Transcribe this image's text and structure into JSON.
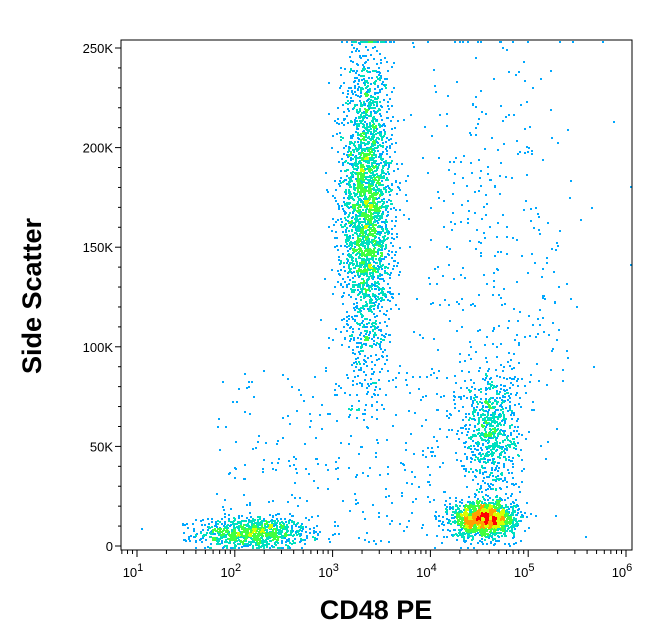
{
  "chart_data": {
    "type": "scatter",
    "style": "flow-cytometry density dot plot (pseudocolor)",
    "xlabel": "CD48 PE",
    "ylabel": "Side Scatter",
    "x_scale": "log",
    "xlim": [
      7,
      12000000
    ],
    "ylim": [
      -3000,
      255000
    ],
    "x_ticks": [
      {
        "value": 10,
        "base": "10",
        "exp": "1"
      },
      {
        "value": 100,
        "base": "10",
        "exp": "2"
      },
      {
        "value": 1000,
        "base": "10",
        "exp": "3"
      },
      {
        "value": 10000,
        "base": "10",
        "exp": "4"
      },
      {
        "value": 100000,
        "base": "10",
        "exp": "5"
      },
      {
        "value": 1000000,
        "base": "10",
        "exp": "6"
      }
    ],
    "y_ticks": [
      {
        "value": 0,
        "label": "0"
      },
      {
        "value": 50000,
        "label": "50K"
      },
      {
        "value": 100000,
        "label": "100K"
      },
      {
        "value": 150000,
        "label": "150K"
      },
      {
        "value": 200000,
        "label": "200K"
      },
      {
        "value": 250000,
        "label": "250K"
      }
    ],
    "density_colors": [
      "#0000ff",
      "#00a8ff",
      "#00e0c0",
      "#40ff40",
      "#d8ff00",
      "#ffa000",
      "#ff0000"
    ],
    "populations": [
      {
        "x_center": 150,
        "y_center": 7000,
        "log_x_spread": 0.28,
        "y_spread": 4000,
        "count": 900
      },
      {
        "x_center": 2200,
        "y_center": 170000,
        "log_x_spread": 0.13,
        "y_spread": 38000,
        "count": 2800
      },
      {
        "x_center": 35000,
        "y_center": 14000,
        "log_x_spread": 0.16,
        "y_spread": 4500,
        "count": 1500
      },
      {
        "x_center": 40000,
        "y_center": 58000,
        "log_x_spread": 0.15,
        "y_spread": 15000,
        "count": 700
      },
      {
        "x_center": 50000,
        "y_center": 150000,
        "log_x_spread": 0.45,
        "y_spread": 60000,
        "count": 350
      }
    ]
  }
}
